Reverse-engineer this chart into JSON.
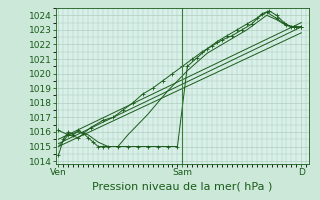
{
  "xlabel": "Pression niveau de la mer( hPa )",
  "bg_color": "#cce8d8",
  "plot_bg_color": "#d8f0e8",
  "grid_color": "#a8c8b8",
  "line_color": "#1a5c1a",
  "ylim": [
    1013.8,
    1024.5
  ],
  "yticks": [
    1014,
    1015,
    1016,
    1017,
    1018,
    1019,
    1020,
    1021,
    1022,
    1023,
    1024
  ],
  "xtick_labels": [
    "Ven",
    "Sam",
    "D"
  ],
  "xtick_positions": [
    0.0,
    0.5,
    0.98
  ],
  "font_color": "#1a5c1a",
  "tick_fontsize": 6.5,
  "label_fontsize": 8,
  "lines": [
    {
      "x": [
        0.0,
        0.02,
        0.04,
        0.06,
        0.08,
        0.1,
        0.12,
        0.14,
        0.16,
        0.18,
        0.2,
        0.24,
        0.28,
        0.32,
        0.36,
        0.4,
        0.44,
        0.48,
        0.52,
        0.56,
        0.6,
        0.64,
        0.68,
        0.72,
        0.76,
        0.8,
        0.84,
        0.88,
        0.92,
        0.95,
        0.98
      ],
      "y": [
        1014.4,
        1015.5,
        1016.0,
        1015.8,
        1016.1,
        1015.9,
        1015.6,
        1015.3,
        1015.0,
        1015.0,
        1015.0,
        1015.0,
        1015.0,
        1015.0,
        1015.0,
        1015.0,
        1015.0,
        1015.0,
        1020.5,
        1021.1,
        1021.7,
        1022.2,
        1022.6,
        1023.0,
        1023.4,
        1023.8,
        1024.2,
        1023.8,
        1023.3,
        1023.2,
        1023.2
      ],
      "marker": "+",
      "lw": 0.7
    },
    {
      "x": [
        0.0,
        0.98
      ],
      "y": [
        1015.5,
        1023.5
      ],
      "marker": null,
      "lw": 0.7
    },
    {
      "x": [
        0.0,
        0.98
      ],
      "y": [
        1015.2,
        1023.2
      ],
      "marker": null,
      "lw": 0.7
    },
    {
      "x": [
        0.0,
        0.98
      ],
      "y": [
        1015.0,
        1022.8
      ],
      "marker": null,
      "lw": 0.7
    },
    {
      "x": [
        0.0,
        0.04,
        0.08,
        0.13,
        0.18,
        0.22,
        0.26,
        0.3,
        0.34,
        0.38,
        0.42,
        0.46,
        0.5,
        0.54,
        0.58,
        0.62,
        0.66,
        0.7,
        0.74,
        0.78,
        0.82,
        0.85,
        0.88,
        0.91,
        0.94,
        0.96,
        0.98
      ],
      "y": [
        1016.1,
        1015.8,
        1015.6,
        1016.3,
        1016.8,
        1017.0,
        1017.5,
        1018.0,
        1018.6,
        1019.0,
        1019.5,
        1020.0,
        1020.5,
        1021.0,
        1021.5,
        1021.9,
        1022.3,
        1022.6,
        1023.0,
        1023.4,
        1024.1,
        1024.3,
        1024.0,
        1023.5,
        1023.2,
        1023.2,
        1023.2
      ],
      "marker": "+",
      "lw": 0.7
    },
    {
      "x": [
        0.0,
        0.04,
        0.08,
        0.12,
        0.16,
        0.2,
        0.24,
        0.28,
        0.32,
        0.36,
        0.4,
        0.44,
        0.48,
        0.52,
        0.56,
        0.6,
        0.64,
        0.68,
        0.72,
        0.76,
        0.8,
        0.84,
        0.88,
        0.92,
        0.96,
        0.98
      ],
      "y": [
        1015.0,
        1015.8,
        1016.0,
        1015.8,
        1015.3,
        1015.0,
        1015.0,
        1015.8,
        1016.5,
        1017.2,
        1018.0,
        1018.8,
        1019.5,
        1020.2,
        1020.8,
        1021.4,
        1021.8,
        1022.2,
        1022.6,
        1023.0,
        1023.5,
        1024.0,
        1023.7,
        1023.3,
        1023.2,
        1023.2
      ],
      "marker": null,
      "lw": 0.7
    }
  ],
  "vline_x": 0.5,
  "vline_color": "#3a7c3a"
}
